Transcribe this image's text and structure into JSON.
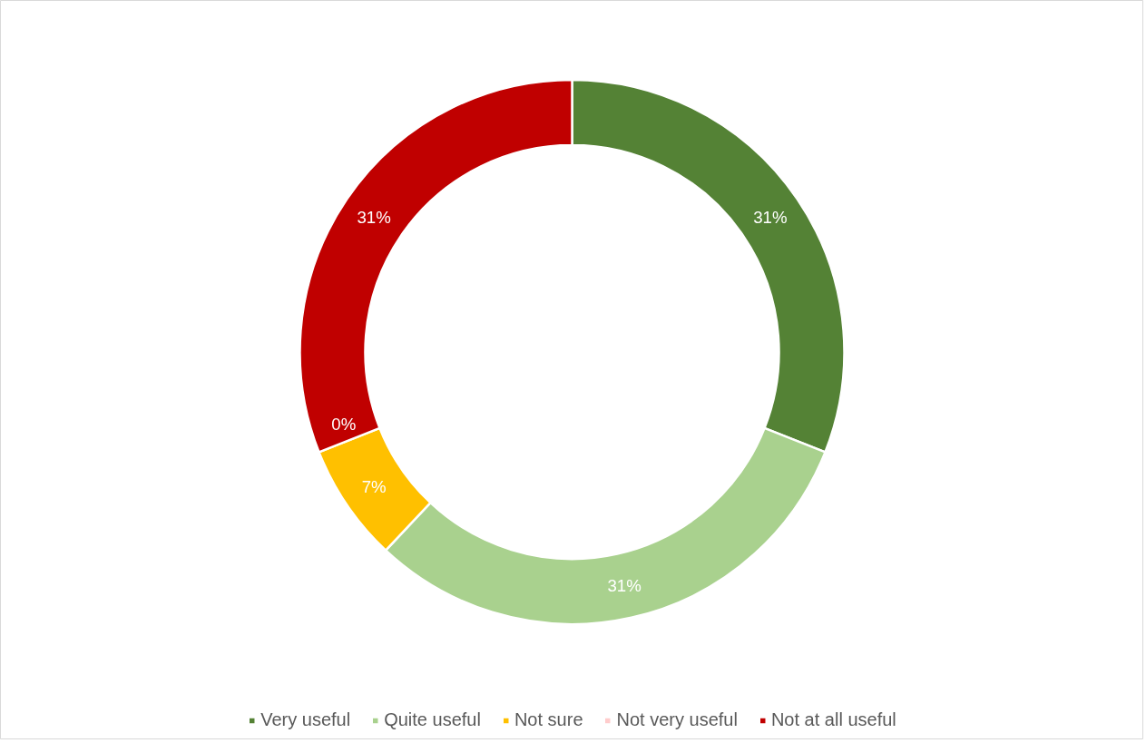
{
  "chart_data": {
    "type": "donut",
    "categories": [
      "Very useful",
      "Quite useful",
      "Not sure",
      "Not very useful",
      "Not at all useful"
    ],
    "values": [
      31,
      31,
      7,
      0,
      31
    ],
    "colors": [
      "#548235",
      "#a9d18e",
      "#ffc000",
      "#ffcccc",
      "#c00000"
    ],
    "value_labels": [
      "31%",
      "31%",
      "7%",
      "0%",
      "31%"
    ],
    "legend": "bottom"
  }
}
